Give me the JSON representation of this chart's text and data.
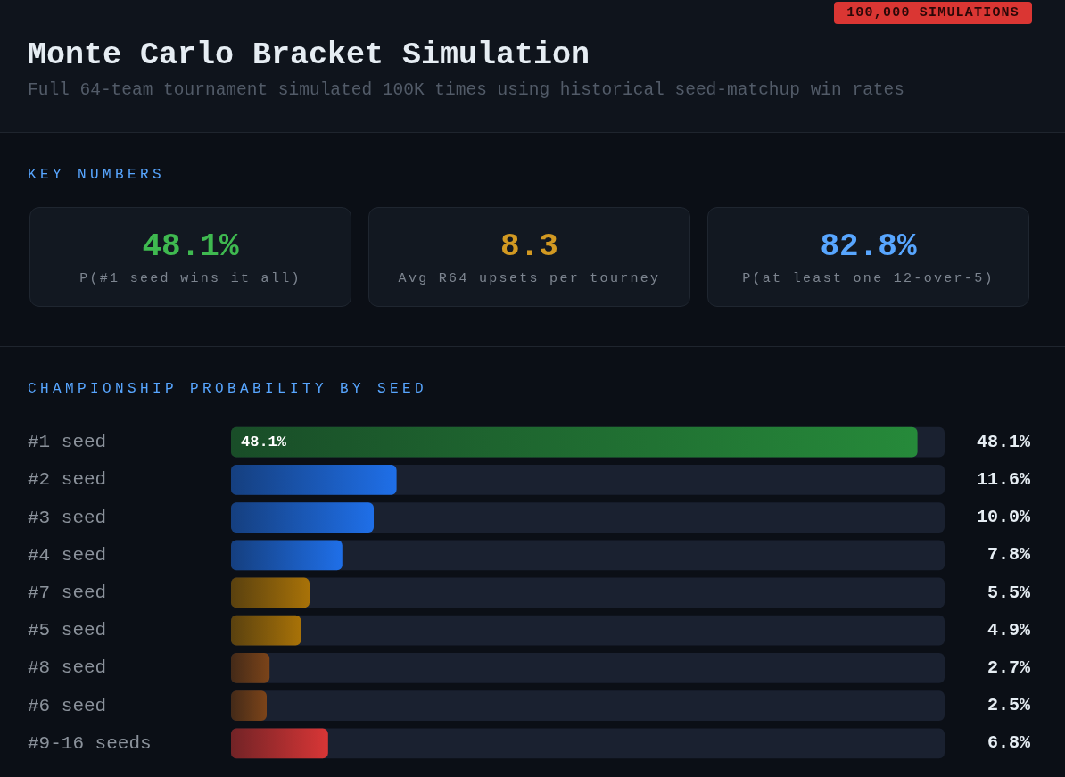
{
  "chart_data": [
    {
      "type": "other",
      "title": "Monte Carlo Bracket Simulation",
      "subtitle": "Full 64-team tournament simulated 100K times using historical seed-matchup win rates",
      "annotations": [
        "100,000 SIMULATIONS"
      ]
    },
    {
      "type": "other",
      "title": "KEY NUMBERS",
      "annotations": [
        "48.1%",
        "P(#1 seed wins it all)",
        "8.3",
        "Avg R64 upsets per tourney",
        "82.8%",
        "P(at least one 12-over-5)"
      ],
      "colors": [
        "#3fb950",
        "#d29922",
        "#58a6ff"
      ]
    },
    {
      "type": "bar",
      "orientation": "horizontal",
      "title": "CHAMPIONSHIP PROBABILITY BY SEED",
      "categories": [
        "#1 seed",
        "#2 seed",
        "#3 seed",
        "#4 seed",
        "#7 seed",
        "#5 seed",
        "#8 seed",
        "#6 seed",
        "#9-16 seeds"
      ],
      "values": [
        48.1,
        11.6,
        10.0,
        7.8,
        5.5,
        4.9,
        2.7,
        2.5,
        6.8
      ],
      "colors": [
        "#268a3a",
        "#1f6fe8",
        "#1f6fe8",
        "#1f6fe8",
        "#a87208",
        "#a87208",
        "#7c4419",
        "#7c4419",
        "#d93636"
      ],
      "value_labels": [
        "48.1%",
        "11.6%",
        "10.0%",
        "7.8%",
        "5.5%",
        "4.9%",
        "2.7%",
        "2.5%",
        "6.8%"
      ],
      "xlim": [
        0,
        50
      ],
      "tick_labels": "y",
      "annotations": [
        {
          "text": "48.1%",
          "x": 0,
          "y": "#1 seed"
        }
      ]
    }
  ]
}
